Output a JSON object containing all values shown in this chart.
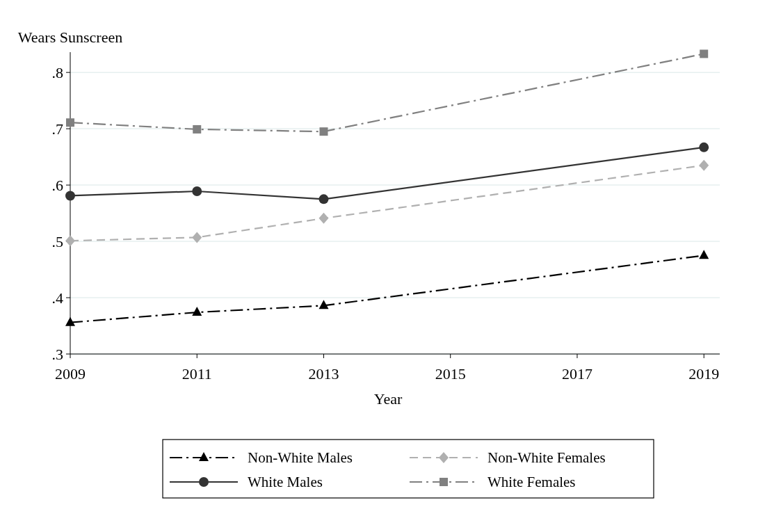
{
  "chart_data": {
    "type": "line",
    "ylabel": "Wears Sunscreen",
    "xlabel": "Year",
    "x": [
      2009,
      2011,
      2013,
      2019
    ],
    "xlim": [
      2009,
      2019.25
    ],
    "xticks": [
      2009,
      2011,
      2013,
      2015,
      2017,
      2019
    ],
    "ylim": [
      0.3,
      0.836
    ],
    "yticks": [
      {
        "value": 0.3,
        "label": ".3"
      },
      {
        "value": 0.4,
        "label": ".4"
      },
      {
        "value": 0.5,
        "label": ".5"
      },
      {
        "value": 0.6,
        "label": ".6"
      },
      {
        "value": 0.7,
        "label": ".7"
      },
      {
        "value": 0.8,
        "label": ".8"
      }
    ],
    "grid": "y",
    "legend": "bottom",
    "series": [
      {
        "name": "Non-White Males",
        "color": "#000000",
        "marker": "triangle",
        "line_style": "dashdot",
        "values": [
          0.356,
          0.374,
          0.386,
          0.475
        ]
      },
      {
        "name": "Non-White Females",
        "color": "#b0b0b0",
        "marker": "diamond",
        "line_style": "dashed",
        "values": [
          0.501,
          0.507,
          0.541,
          0.635
        ]
      },
      {
        "name": "White Males",
        "color": "#333333",
        "marker": "circle",
        "line_style": "solid",
        "values": [
          0.581,
          0.589,
          0.575,
          0.667
        ]
      },
      {
        "name": "White Females",
        "color": "#808080",
        "marker": "square",
        "line_style": "dashdot",
        "values": [
          0.711,
          0.699,
          0.695,
          0.833
        ]
      }
    ]
  }
}
